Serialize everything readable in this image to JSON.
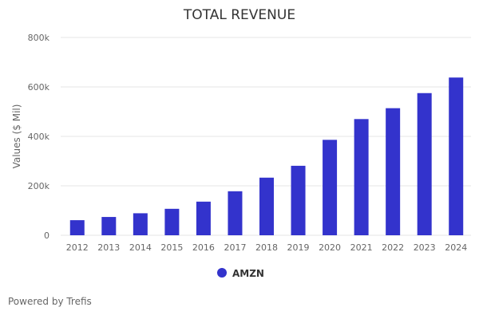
{
  "credit": "Powered by Trefis",
  "chart_data": {
    "type": "bar",
    "title": "TOTAL REVENUE",
    "xlabel": "",
    "ylabel": "Values ($ Mil)",
    "ylim": [
      0,
      800000
    ],
    "y_ticks": [
      {
        "value": 0,
        "label": "0"
      },
      {
        "value": 200000,
        "label": "200k"
      },
      {
        "value": 400000,
        "label": "400k"
      },
      {
        "value": 600000,
        "label": "600k"
      },
      {
        "value": 800000,
        "label": "800k"
      }
    ],
    "grid": true,
    "legend_position": "bottom",
    "categories": [
      "2012",
      "2013",
      "2014",
      "2015",
      "2016",
      "2017",
      "2018",
      "2019",
      "2020",
      "2021",
      "2022",
      "2023",
      "2024"
    ],
    "series": [
      {
        "name": "AMZN",
        "color": "#3333cc",
        "values": [
          61000,
          74000,
          89000,
          107000,
          136000,
          178000,
          233000,
          281000,
          386000,
          470000,
          514000,
          575000,
          638000
        ]
      }
    ]
  }
}
